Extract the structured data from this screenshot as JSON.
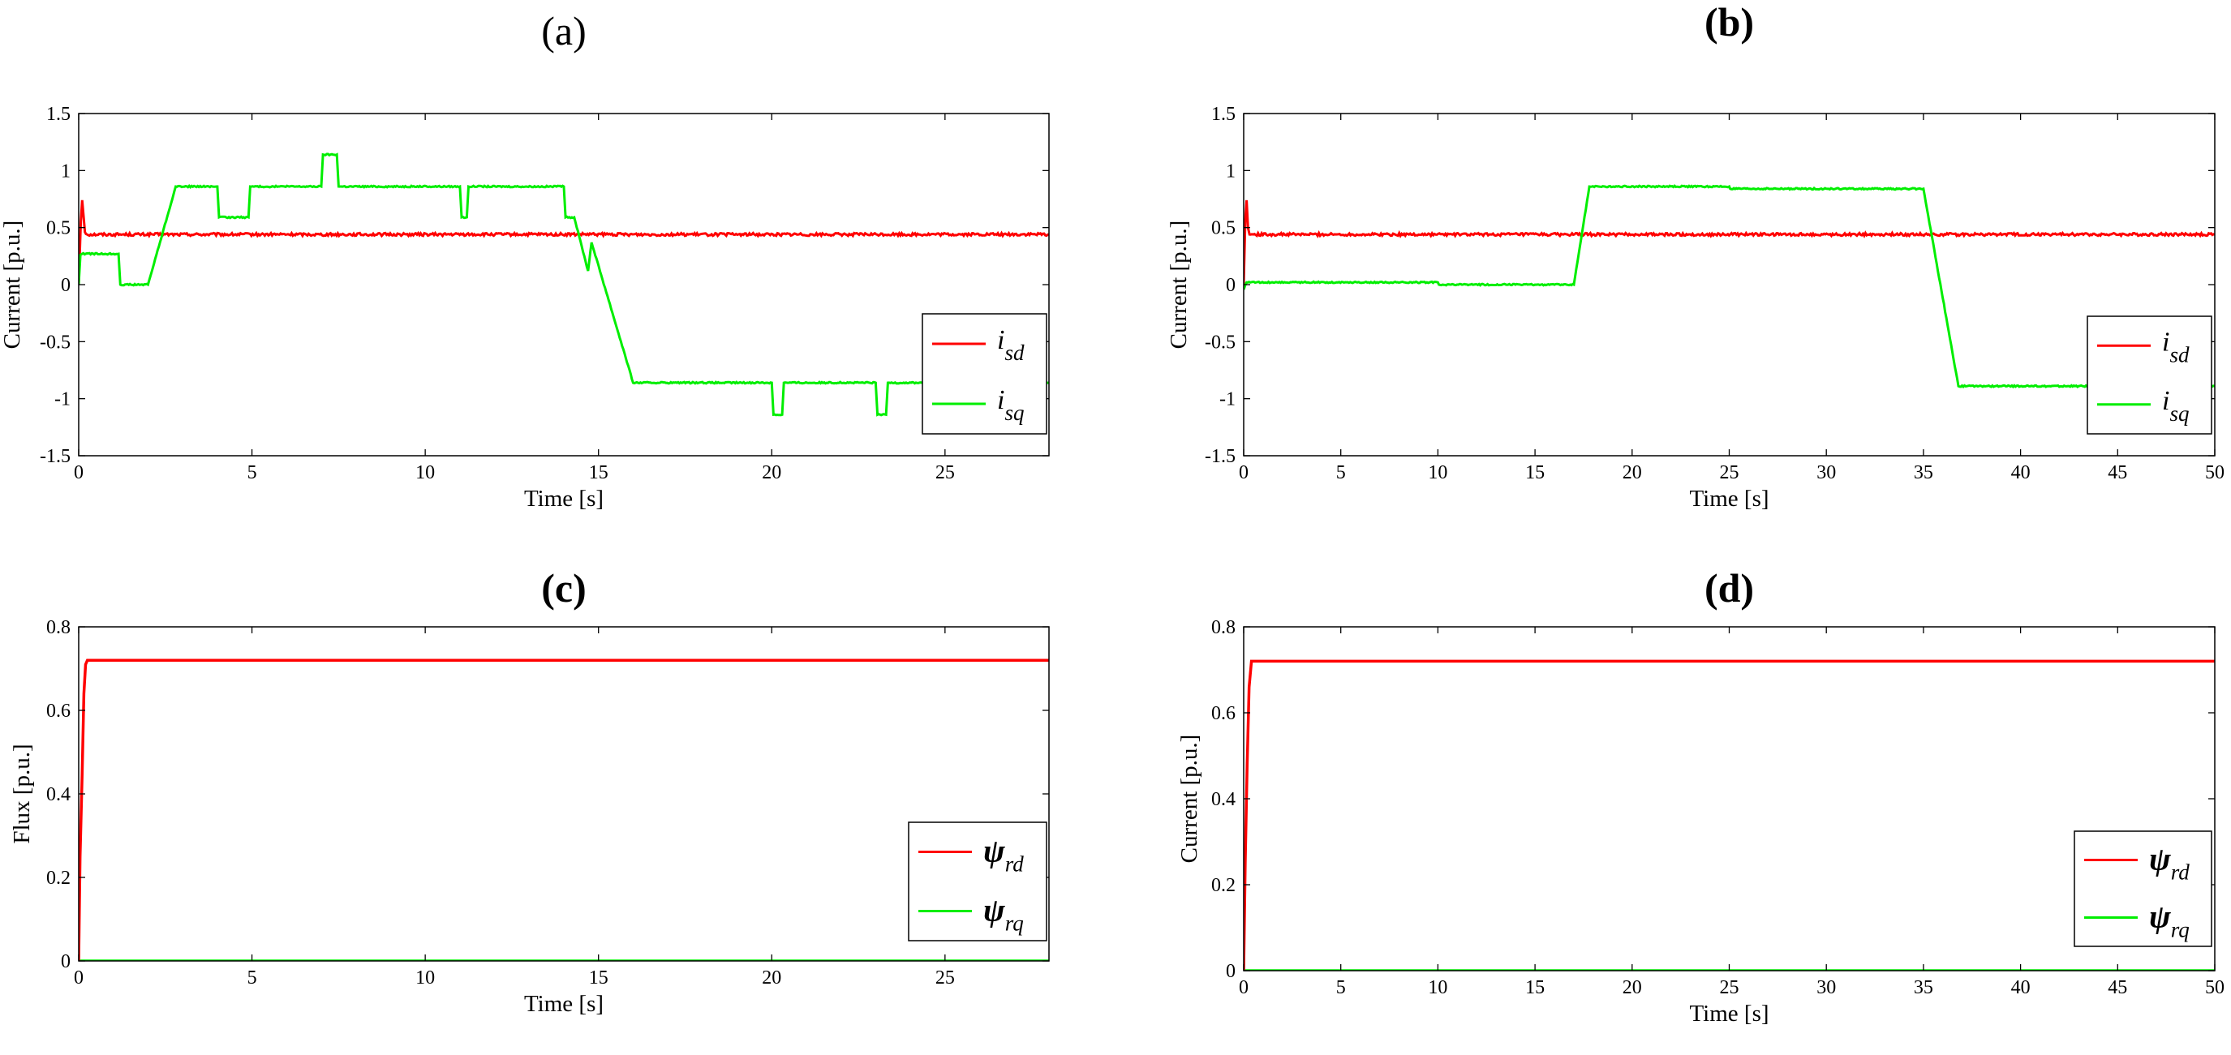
{
  "chart_data": [
    {
      "id": "a",
      "panel_label": "(a)",
      "label_bold": false,
      "type": "line",
      "xlabel": "Time [s]",
      "ylabel": "Current [p.u.]",
      "xlim": [
        0,
        28
      ],
      "ylim": [
        -1.5,
        1.5
      ],
      "xticks": [
        0,
        5,
        10,
        15,
        20,
        25
      ],
      "yticks": [
        -1.5,
        -1,
        -0.5,
        0,
        0.5,
        1,
        1.5
      ],
      "grid": false,
      "legend_position": "right",
      "legend": [
        {
          "base": "i",
          "sub": "sd",
          "color": "#ff0000"
        },
        {
          "base": "i",
          "sub": "sq",
          "color": "#00ee00"
        }
      ],
      "series": [
        {
          "color": "#ff0000",
          "noise": 0.012,
          "x": [
            0,
            0.06,
            0.1,
            0.14,
            0.18,
            0.24,
            28
          ],
          "y": [
            0,
            0.55,
            0.74,
            0.6,
            0.46,
            0.44,
            0.44
          ]
        },
        {
          "color": "#00ee00",
          "noise": 0.006,
          "x": [
            0,
            0.05,
            0.1,
            1.15,
            1.2,
            2.0,
            2.8,
            4.0,
            4.05,
            4.9,
            4.95,
            7.0,
            7.05,
            7.45,
            7.5,
            11.0,
            11.05,
            11.2,
            11.25,
            14.0,
            14.05,
            14.3,
            14.7,
            14.8,
            16.0,
            20.0,
            20.05,
            20.3,
            20.35,
            23.0,
            23.05,
            23.3,
            23.35,
            28
          ],
          "y": [
            0,
            0.26,
            0.27,
            0.27,
            0.0,
            0.0,
            0.86,
            0.86,
            0.59,
            0.59,
            0.86,
            0.86,
            1.14,
            1.14,
            0.86,
            0.86,
            0.59,
            0.59,
            0.86,
            0.86,
            0.59,
            0.59,
            0.12,
            0.37,
            -0.86,
            -0.86,
            -1.14,
            -1.14,
            -0.86,
            -0.86,
            -1.14,
            -1.14,
            -0.86,
            -0.86
          ]
        }
      ]
    },
    {
      "id": "b",
      "panel_label": "(b)",
      "label_bold": true,
      "type": "line",
      "xlabel": "Time [s]",
      "ylabel": "Current [p.u.]",
      "xlim": [
        0,
        50
      ],
      "ylim": [
        -1.5,
        1.5
      ],
      "xticks": [
        0,
        5,
        10,
        15,
        20,
        25,
        30,
        35,
        40,
        45,
        50
      ],
      "yticks": [
        -1.5,
        -1,
        -0.5,
        0,
        0.5,
        1,
        1.5
      ],
      "grid": false,
      "legend_position": "right",
      "legend": [
        {
          "base": "i",
          "sub": "sd",
          "color": "#ff0000"
        },
        {
          "base": "i",
          "sub": "sq",
          "color": "#00ee00"
        }
      ],
      "series": [
        {
          "color": "#ff0000",
          "noise": 0.012,
          "x": [
            0,
            0.08,
            0.15,
            0.22,
            0.3,
            50
          ],
          "y": [
            0,
            0.55,
            0.74,
            0.5,
            0.44,
            0.44
          ]
        },
        {
          "color": "#00ee00",
          "noise": 0.006,
          "x": [
            0,
            0.05,
            0.15,
            10.0,
            10.05,
            17.0,
            17.8,
            25.0,
            25.05,
            35.0,
            36.8,
            50
          ],
          "y": [
            0,
            -0.02,
            0.02,
            0.02,
            0.0,
            0.0,
            0.86,
            0.86,
            0.84,
            0.84,
            -0.89,
            -0.89
          ]
        }
      ]
    },
    {
      "id": "c",
      "panel_label": "(c)",
      "label_bold": true,
      "type": "line",
      "xlabel": "Time [s]",
      "ylabel": "Flux [p.u.]",
      "xlim": [
        0,
        28
      ],
      "ylim": [
        0,
        0.8
      ],
      "xticks": [
        0,
        5,
        10,
        15,
        20,
        25
      ],
      "yticks": [
        0,
        0.2,
        0.4,
        0.6,
        0.8
      ],
      "grid": false,
      "legend_position": "right",
      "legend": [
        {
          "base": "ψ",
          "sub": "rd",
          "color": "#ff0000"
        },
        {
          "base": "ψ",
          "sub": "rq",
          "color": "#00ee00"
        }
      ],
      "series": [
        {
          "color": "#00ee00",
          "noise": 0,
          "x": [
            0,
            28
          ],
          "y": [
            0,
            0
          ]
        },
        {
          "color": "#ff0000",
          "noise": 0,
          "x": [
            0,
            0.04,
            0.1,
            0.15,
            0.2,
            0.25,
            28
          ],
          "y": [
            0,
            0.25,
            0.45,
            0.64,
            0.71,
            0.72,
            0.72
          ]
        }
      ]
    },
    {
      "id": "d",
      "panel_label": "(d)",
      "label_bold": true,
      "type": "line",
      "xlabel": "Time [s]",
      "ylabel": "Current [p.u.]",
      "xlim": [
        0,
        50
      ],
      "ylim": [
        0,
        0.8
      ],
      "xticks": [
        0,
        5,
        10,
        15,
        20,
        25,
        30,
        35,
        40,
        45,
        50
      ],
      "yticks": [
        0,
        0.2,
        0.4,
        0.6,
        0.8
      ],
      "grid": false,
      "legend_position": "right",
      "legend": [
        {
          "base": "ψ",
          "sub": "rd",
          "color": "#ff0000"
        },
        {
          "base": "ψ",
          "sub": "rq",
          "color": "#00ee00"
        }
      ],
      "series": [
        {
          "color": "#00ee00",
          "noise": 0,
          "x": [
            0,
            50
          ],
          "y": [
            0,
            0
          ]
        },
        {
          "color": "#ff0000",
          "noise": 0,
          "x": [
            0,
            0.08,
            0.18,
            0.28,
            0.4,
            50
          ],
          "y": [
            0,
            0.25,
            0.48,
            0.66,
            0.72,
            0.72
          ]
        }
      ]
    }
  ]
}
